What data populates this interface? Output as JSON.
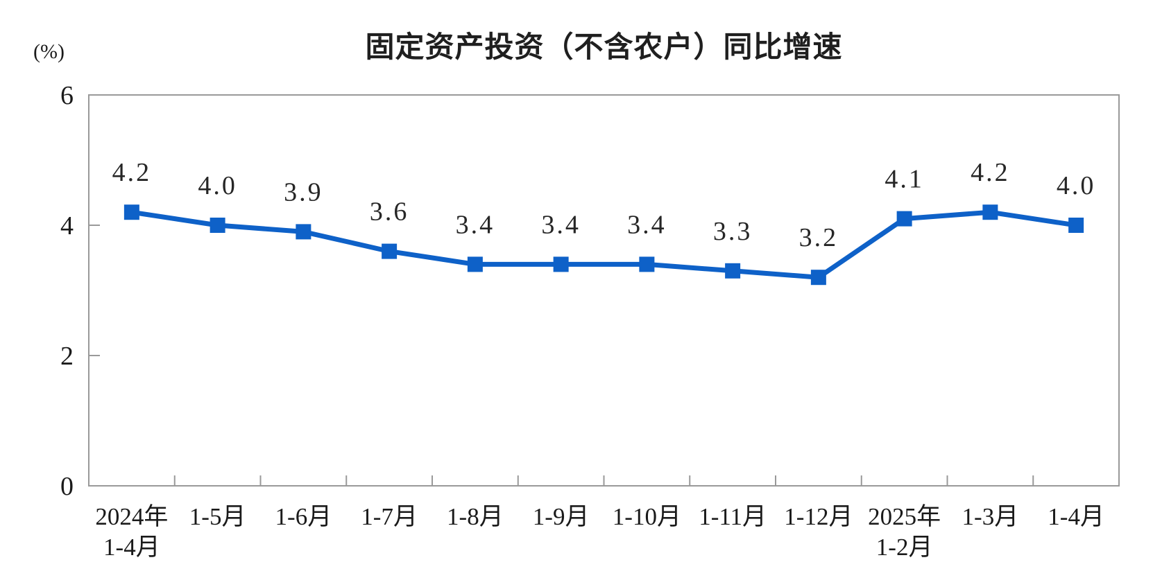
{
  "colors": {
    "line": "#0E61C8",
    "axis": "#999999",
    "text": "#1A1A1A"
  },
  "chart_data": {
    "type": "line",
    "title": "固定资产投资（不含农户）同比增速",
    "ylabel": "(%)",
    "xlabel": "",
    "ylim": [
      0,
      6
    ],
    "yticks": [
      0,
      2,
      4,
      6
    ],
    "grid": false,
    "legend_position": "none",
    "marker": "square",
    "categories": [
      [
        "2024年",
        "1-4月"
      ],
      [
        "1-5月"
      ],
      [
        "1-6月"
      ],
      [
        "1-7月"
      ],
      [
        "1-8月"
      ],
      [
        "1-9月"
      ],
      [
        "1-10月"
      ],
      [
        "1-11月"
      ],
      [
        "1-12月"
      ],
      [
        "2025年",
        "1-2月"
      ],
      [
        "1-3月"
      ],
      [
        "1-4月"
      ]
    ],
    "values": [
      4.2,
      4.0,
      3.9,
      3.6,
      3.4,
      3.4,
      3.4,
      3.3,
      3.2,
      4.1,
      4.2,
      4.0
    ],
    "point_labels": [
      "4.2",
      "4.0",
      "3.9",
      "3.6",
      "3.4",
      "3.4",
      "3.4",
      "3.3",
      "3.2",
      "4.1",
      "4.2",
      "4.0"
    ]
  }
}
